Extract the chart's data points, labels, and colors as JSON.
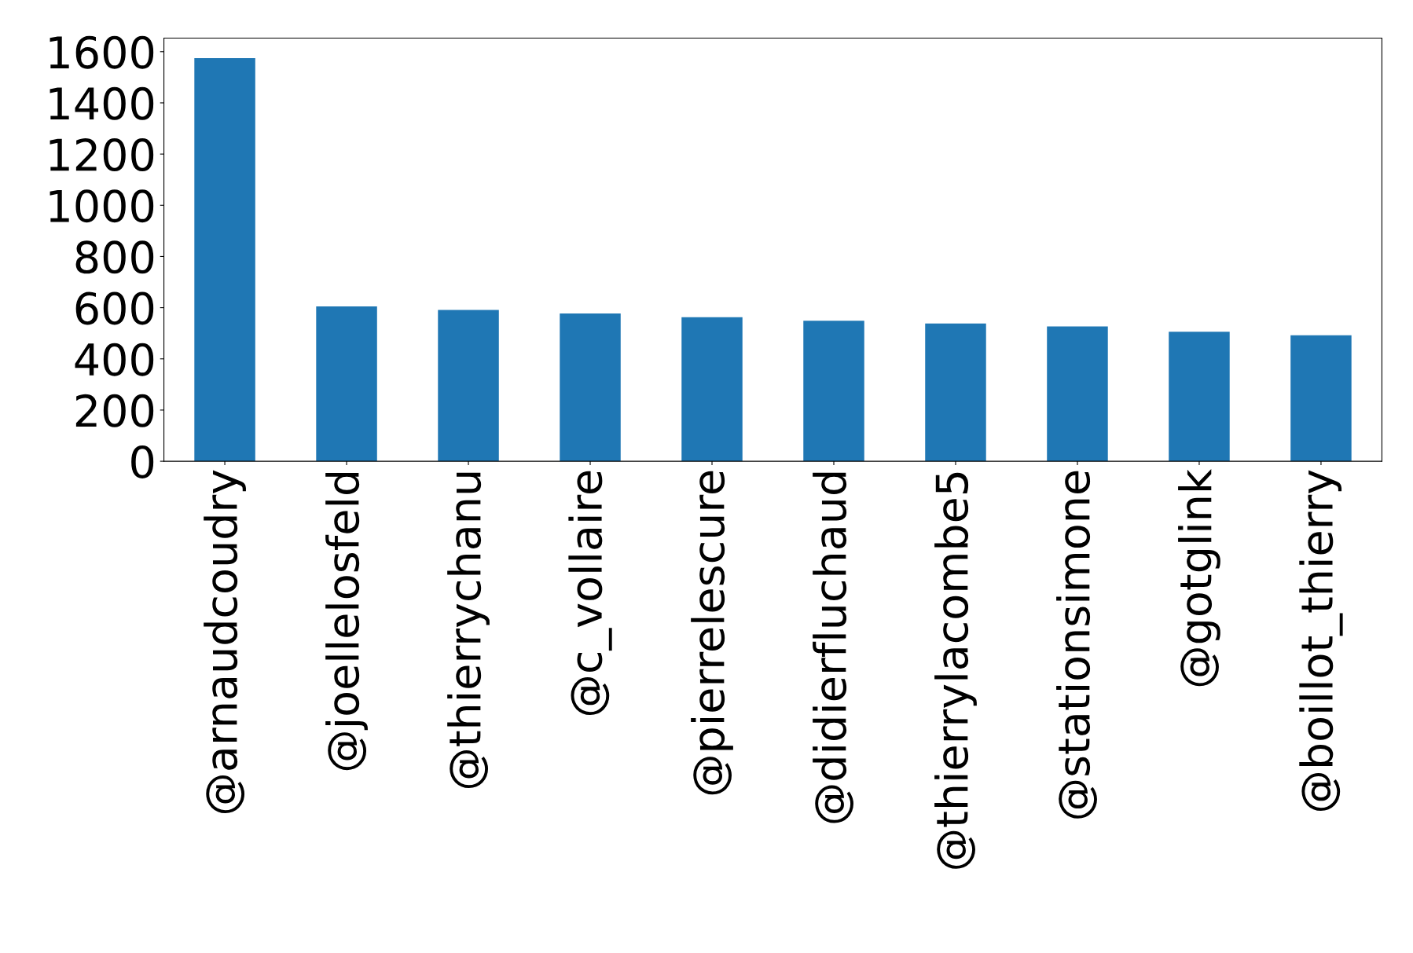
{
  "chart_data": {
    "type": "bar",
    "categories": [
      "@arnaudcoudry",
      "@joellelosfeld",
      "@thierrychanu",
      "@c_vollaire",
      "@pierrelescure",
      "@didierfluchaud",
      "@thierrylacombe5",
      "@stationsimone",
      "@gotglink",
      "@boillot_thierry"
    ],
    "values": [
      1575,
      605,
      591,
      577,
      563,
      549,
      538,
      527,
      506,
      492
    ],
    "color": "#1f77b4",
    "ylim": [
      0,
      1653
    ],
    "yticks": [
      0,
      200,
      400,
      600,
      800,
      1000,
      1200,
      1400,
      1600
    ],
    "grid": false,
    "legend": false
  }
}
